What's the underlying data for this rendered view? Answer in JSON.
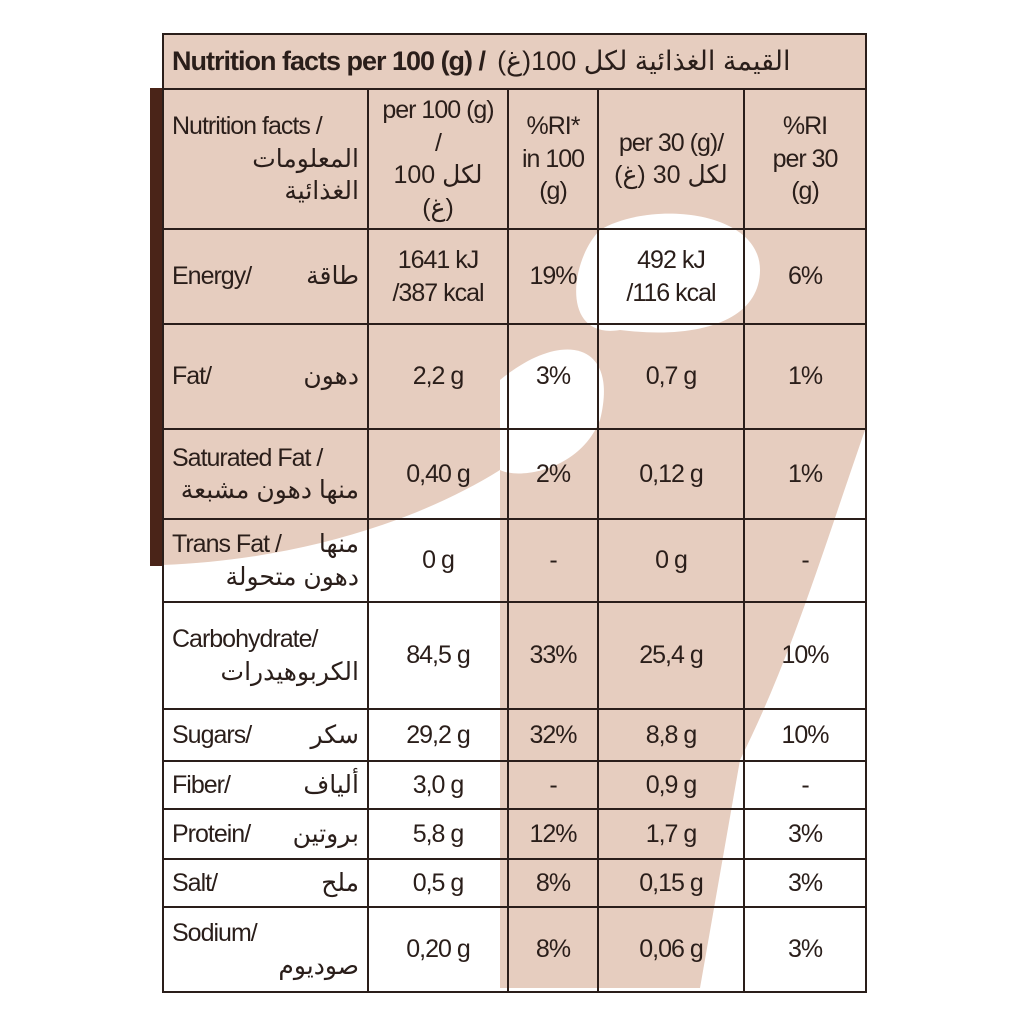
{
  "title": "Nutrition facts per 100 (g) /",
  "title_ar": "القيمة الغذائية لكل 100(غ)",
  "header": {
    "en": "Nutrition facts /",
    "ar": [
      "المعلومات",
      "الغذائية"
    ],
    "cells": [
      [
        "per 100 (g) /",
        "لكل 100 (غ)"
      ],
      [
        "%RI*",
        "in 100",
        "(g)"
      ],
      [
        "per 30 (g)/",
        "لكل 30 (غ)"
      ],
      [
        "%RI",
        "per 30",
        "(g)"
      ]
    ]
  },
  "rows": [
    {
      "en": "Energy/",
      "ar": [
        "طاقة"
      ],
      "cells": [
        [
          "1641 kJ",
          "/387 kcal"
        ],
        [
          "19%"
        ],
        [
          "492 kJ",
          "/116 kcal"
        ],
        [
          "6%"
        ]
      ]
    },
    {
      "en": "Fat/",
      "ar": [
        "دهون"
      ],
      "cells": [
        [
          "2,2 g"
        ],
        [
          "3%"
        ],
        [
          "0,7 g"
        ],
        [
          "1%"
        ]
      ]
    },
    {
      "en": "Saturated Fat /",
      "ar": [
        "منها دهون مشبعة"
      ],
      "cells": [
        [
          "0,40 g"
        ],
        [
          "2%"
        ],
        [
          "0,12 g"
        ],
        [
          "1%"
        ]
      ]
    },
    {
      "en": "Trans Fat /",
      "ar": [
        "منها",
        "دهون متحولة"
      ],
      "cells": [
        [
          "0 g"
        ],
        [
          "-"
        ],
        [
          "0 g"
        ],
        [
          "-"
        ]
      ]
    },
    {
      "en": "Carbohydrate/",
      "ar": [
        "الكربوهيدرات"
      ],
      "cells": [
        [
          "84,5 g"
        ],
        [
          "33%"
        ],
        [
          "25,4 g"
        ],
        [
          "10%"
        ]
      ]
    },
    {
      "en": "Sugars/",
      "ar": [
        "سكر"
      ],
      "cells": [
        [
          "29,2 g"
        ],
        [
          "32%"
        ],
        [
          "8,8 g"
        ],
        [
          "10%"
        ]
      ]
    },
    {
      "en": "Fiber/",
      "ar": [
        "ألياف"
      ],
      "cells": [
        [
          "3,0 g"
        ],
        [
          "-"
        ],
        [
          "0,9 g"
        ],
        [
          "-"
        ]
      ]
    },
    {
      "en": "Protein/",
      "ar": [
        "بروتين"
      ],
      "cells": [
        [
          "5,8 g"
        ],
        [
          "12%"
        ],
        [
          "1,7 g"
        ],
        [
          "3%"
        ]
      ]
    },
    {
      "en": "Salt/",
      "ar": [
        "ملح"
      ],
      "cells": [
        [
          "0,5 g"
        ],
        [
          "8%"
        ],
        [
          "0,15 g"
        ],
        [
          "3%"
        ]
      ]
    },
    {
      "en": "Sodium/",
      "ar": [
        "صوديوم"
      ],
      "cells": [
        [
          "0,20 g"
        ],
        [
          "8%"
        ],
        [
          "0,06 g"
        ],
        [
          "3%"
        ]
      ]
    }
  ]
}
